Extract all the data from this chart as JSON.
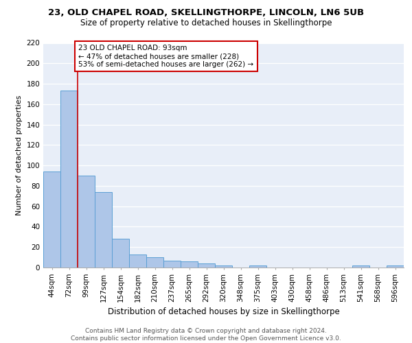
{
  "title1": "23, OLD CHAPEL ROAD, SKELLINGTHORPE, LINCOLN, LN6 5UB",
  "title2": "Size of property relative to detached houses in Skellingthorpe",
  "xlabel": "Distribution of detached houses by size in Skellingthorpe",
  "ylabel": "Number of detached properties",
  "categories": [
    "44sqm",
    "72sqm",
    "99sqm",
    "127sqm",
    "154sqm",
    "182sqm",
    "210sqm",
    "237sqm",
    "265sqm",
    "292sqm",
    "320sqm",
    "348sqm",
    "375sqm",
    "403sqm",
    "430sqm",
    "458sqm",
    "486sqm",
    "513sqm",
    "541sqm",
    "568sqm",
    "596sqm"
  ],
  "values": [
    94,
    173,
    90,
    74,
    28,
    13,
    10,
    7,
    6,
    4,
    2,
    0,
    2,
    0,
    0,
    0,
    0,
    0,
    2,
    0,
    2
  ],
  "bar_color": "#aec6e8",
  "bar_edge_color": "#5a9fd4",
  "vline_x": 1.5,
  "vline_color": "#cc0000",
  "annotation_text": "23 OLD CHAPEL ROAD: 93sqm\n← 47% of detached houses are smaller (228)\n53% of semi-detached houses are larger (262) →",
  "annotation_box_color": "white",
  "annotation_box_edge_color": "#cc0000",
  "ylim": [
    0,
    220
  ],
  "yticks": [
    0,
    20,
    40,
    60,
    80,
    100,
    120,
    140,
    160,
    180,
    200,
    220
  ],
  "background_color": "#e8eef8",
  "footer_text": "Contains HM Land Registry data © Crown copyright and database right 2024.\nContains public sector information licensed under the Open Government Licence v3.0.",
  "title1_fontsize": 9.5,
  "title2_fontsize": 8.5,
  "xlabel_fontsize": 8.5,
  "ylabel_fontsize": 8,
  "tick_fontsize": 7.5,
  "annotation_fontsize": 7.5,
  "footer_fontsize": 6.5
}
